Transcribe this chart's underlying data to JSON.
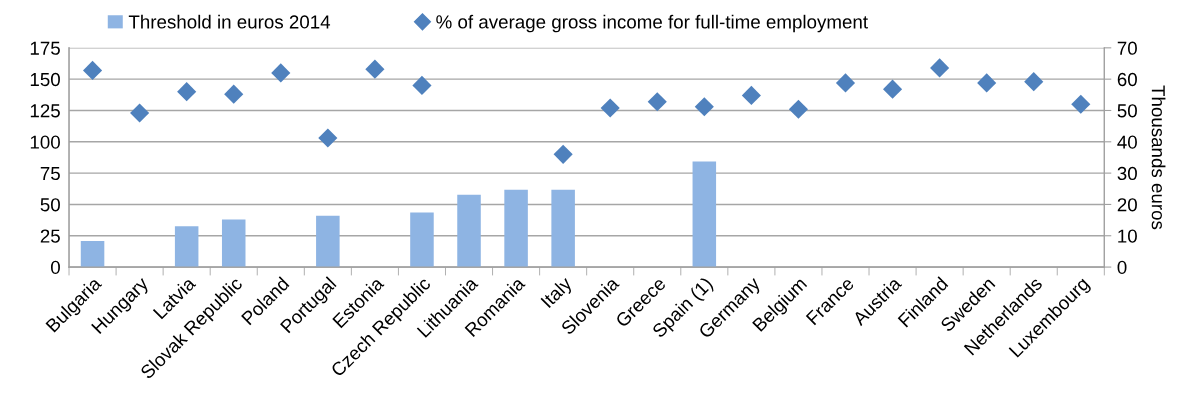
{
  "chart_data": {
    "type": "bar",
    "categories": [
      "Bulgaria",
      "Hungary",
      "Latvia",
      "Slovak Republic",
      "Poland",
      "Portugal",
      "Estonia",
      "Czech Republic",
      "Lithuania",
      "Romania",
      "Italy",
      "Slovenia",
      "Greece",
      "Spain (1)",
      "Germany",
      "Belgium",
      "France",
      "Austria",
      "Finland",
      "Sweden",
      "Netherlands",
      "Luxembourg"
    ],
    "series": [
      {
        "name": "Threshold in euros 2014",
        "axis": "y2",
        "color": "#8eb4e3",
        "values": [
          8.3,
          null,
          13.0,
          15.2,
          null,
          16.4,
          null,
          17.4,
          23.1,
          24.7,
          24.7,
          null,
          null,
          33.7,
          null,
          null,
          null,
          null,
          null,
          null,
          null,
          null
        ]
      },
      {
        "name": "% of average gross income for full-time employment",
        "type": "scatter",
        "color": "#4f81bd",
        "values": [
          157,
          123,
          140,
          138,
          155,
          103,
          158,
          145,
          null,
          null,
          90,
          127,
          132,
          128,
          137,
          126,
          147,
          142,
          159,
          147,
          148,
          130
        ]
      }
    ],
    "marker": "diamond",
    "ylim": [
      0,
      175
    ],
    "yticks": [
      0,
      25,
      50,
      75,
      100,
      125,
      150,
      175
    ],
    "y2lim": [
      0,
      70
    ],
    "y2ticks": [
      0,
      10,
      20,
      30,
      40,
      50,
      60,
      70
    ],
    "y2label": "Thousands euros",
    "grid": "y",
    "legend": "top"
  }
}
